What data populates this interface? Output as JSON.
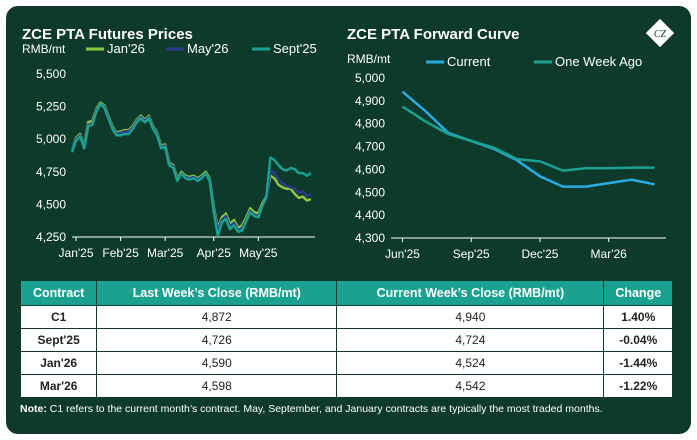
{
  "colors": {
    "background": "#0e3a2c",
    "header": "#1aa190",
    "jan26": "#8cc63f",
    "may26": "#2e3a8c",
    "sept25": "#1aa190",
    "current": "#29abe2",
    "one_week_ago": "#1aa190"
  },
  "logo": {
    "icon": "cz-diamond-logo",
    "text": "CZ"
  },
  "chart_data": [
    {
      "type": "line",
      "title": "ZCE PTA Futures Prices",
      "ylabel": "RMB/mt",
      "ylim": [
        4250,
        5500
      ],
      "yticks": [
        "5,500",
        "5,250",
        "5,000",
        "4,750",
        "4,500",
        "4,250"
      ],
      "ytick_values": [
        5500,
        5250,
        5000,
        4750,
        4500,
        4250
      ],
      "xticks": [
        "Jan'25",
        "Feb'25",
        "Mar'25",
        "Apr'25",
        "May'25"
      ],
      "xtick_values": [
        2,
        24,
        46,
        70,
        92
      ],
      "xlim": [
        0,
        120
      ],
      "legend_position": "top",
      "series": [
        {
          "name": "Jan'26",
          "color": "#8cc63f",
          "x": [
            0,
            2,
            4,
            6,
            8,
            10,
            12,
            14,
            16,
            18,
            20,
            22,
            24,
            26,
            28,
            30,
            32,
            34,
            36,
            38,
            40,
            42,
            44,
            46,
            48,
            50,
            52,
            54,
            56,
            58,
            60,
            62,
            64,
            66,
            68,
            70,
            72,
            74,
            76,
            78,
            80,
            82,
            84,
            86,
            88,
            90,
            92,
            94,
            96,
            98,
            100,
            102,
            104,
            106,
            108,
            110,
            112,
            114,
            116,
            118
          ],
          "y": [
            4920,
            5010,
            5040,
            4950,
            5130,
            5140,
            5230,
            5280,
            5260,
            5180,
            5100,
            5050,
            5060,
            5070,
            5070,
            5100,
            5150,
            5180,
            5150,
            5180,
            5100,
            5050,
            4950,
            4960,
            4820,
            4800,
            4700,
            4750,
            4720,
            4710,
            4720,
            4700,
            4720,
            4750,
            4700,
            4480,
            4320,
            4400,
            4430,
            4350,
            4380,
            4320,
            4340,
            4400,
            4470,
            4440,
            4430,
            4510,
            4560,
            4720,
            4700,
            4650,
            4630,
            4620,
            4620,
            4580,
            4550,
            4560,
            4530,
            4540
          ]
        },
        {
          "name": "May'26",
          "color": "#2e3a8c",
          "x": [
            0,
            2,
            4,
            6,
            8,
            10,
            12,
            14,
            16,
            18,
            20,
            22,
            24,
            26,
            28,
            30,
            32,
            34,
            36,
            38,
            40,
            42,
            44,
            46,
            48,
            50,
            52,
            54,
            56,
            58,
            60,
            62,
            64,
            66,
            68,
            70,
            72,
            74,
            76,
            78,
            80,
            82,
            84,
            86,
            88,
            90,
            92,
            94,
            96,
            98,
            100,
            102,
            104,
            106,
            108,
            110,
            112,
            114,
            116,
            118
          ],
          "y": [
            4920,
            5000,
            5030,
            4940,
            5110,
            5120,
            5220,
            5270,
            5250,
            5170,
            5090,
            5040,
            5050,
            5060,
            5060,
            5090,
            5140,
            5170,
            5140,
            5170,
            5090,
            5040,
            4940,
            4950,
            4810,
            4790,
            4690,
            4740,
            4710,
            4700,
            4710,
            4690,
            4710,
            4740,
            4690,
            4460,
            4300,
            4380,
            4410,
            4330,
            4360,
            4300,
            4320,
            4380,
            4450,
            4420,
            4410,
            4490,
            4540,
            4760,
            4740,
            4690,
            4660,
            4640,
            4630,
            4620,
            4590,
            4600,
            4560,
            4580
          ]
        },
        {
          "name": "Sept'25",
          "color": "#1aa190",
          "x": [
            0,
            2,
            4,
            6,
            8,
            10,
            12,
            14,
            16,
            18,
            20,
            22,
            24,
            26,
            28,
            30,
            32,
            34,
            36,
            38,
            40,
            42,
            44,
            46,
            48,
            50,
            52,
            54,
            56,
            58,
            60,
            62,
            64,
            66,
            68,
            70,
            72,
            74,
            76,
            78,
            80,
            82,
            84,
            86,
            88,
            90,
            92,
            94,
            96,
            98,
            100,
            102,
            104,
            106,
            108,
            110,
            112,
            114,
            116,
            118
          ],
          "y": [
            4900,
            4990,
            5020,
            4930,
            5100,
            5110,
            5210,
            5270,
            5240,
            5160,
            5080,
            5030,
            5030,
            5040,
            5040,
            5080,
            5130,
            5160,
            5130,
            5160,
            5080,
            5030,
            4930,
            4940,
            4800,
            4780,
            4680,
            4740,
            4700,
            4690,
            4700,
            4680,
            4700,
            4740,
            4680,
            4440,
            4260,
            4360,
            4390,
            4310,
            4340,
            4290,
            4300,
            4370,
            4440,
            4410,
            4400,
            4490,
            4560,
            4860,
            4840,
            4800,
            4770,
            4760,
            4780,
            4770,
            4740,
            4740,
            4720,
            4740
          ]
        }
      ]
    },
    {
      "type": "line",
      "title": "ZCE PTA Forward Curve",
      "ylabel": "RMB/mt",
      "ylim": [
        4300,
        5000
      ],
      "yticks": [
        "5,000",
        "4,900",
        "4,800",
        "4,700",
        "4,600",
        "4,500",
        "4,400",
        "4,300"
      ],
      "ytick_values": [
        5000,
        4900,
        4800,
        4700,
        4600,
        4500,
        4400,
        4300
      ],
      "xticks": [
        "Jun'25",
        "Sep'25",
        "Dec'25",
        "Mar'26"
      ],
      "xtick_values": [
        0,
        3,
        6,
        9
      ],
      "xlim": [
        -0.5,
        11.5
      ],
      "legend_position": "top",
      "series": [
        {
          "name": "Current",
          "color": "#29abe2",
          "x": [
            0,
            1,
            2,
            3,
            4,
            5,
            6,
            7,
            8,
            9,
            10,
            11
          ],
          "y": [
            4940,
            4855,
            4760,
            4725,
            4690,
            4640,
            4570,
            4525,
            4525,
            4540,
            4555,
            4535
          ]
        },
        {
          "name": "One Week Ago",
          "color": "#1aa190",
          "x": [
            0,
            1,
            2,
            3,
            4,
            5,
            6,
            7,
            8,
            9,
            10,
            11
          ],
          "y": [
            4875,
            4810,
            4755,
            4725,
            4695,
            4645,
            4635,
            4595,
            4605,
            4605,
            4608,
            4608
          ]
        }
      ]
    }
  ],
  "table": {
    "headers": [
      "Contract",
      "Last Week’s Close (RMB/mt)",
      "Current Week’s Close (RMB/mt)",
      "Change"
    ],
    "rows": [
      [
        "C1",
        "4,872",
        "4,940",
        "1.40%"
      ],
      [
        "Sept'25",
        "4,726",
        "4,724",
        "-0.04%"
      ],
      [
        "Jan'26",
        "4,590",
        "4,524",
        "-1.44%"
      ],
      [
        "Mar'26",
        "4,598",
        "4,542",
        "-1.22%"
      ]
    ]
  },
  "note": {
    "label": "Note:",
    "text": " C1 refers to the current month’s contract. May, September, and January contracts are typically the most traded months."
  }
}
